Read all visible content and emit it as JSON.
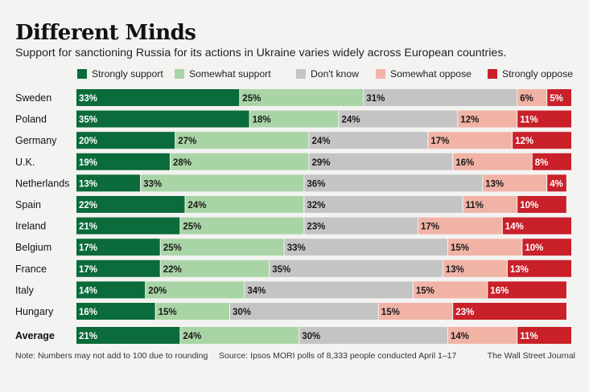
{
  "header": {
    "title": "Different Minds",
    "subtitle": "Support for sanctioning Russia for its actions in Ukraine varies widely across European countries."
  },
  "footer": {
    "note": "Note: Numbers may not add to 100 due to rounding",
    "source": "Source: Ipsos MORI polls of 8,333 people conducted April 1–17",
    "credit": "The Wall Street Journal"
  },
  "colors": {
    "strongly_support": "#0b6b3a",
    "somewhat_support": "#a9d5a6",
    "dont_know": "#c4c4c4",
    "somewhat_oppose": "#f2b3a7",
    "strongly_oppose": "#c9202a"
  },
  "chart_data": {
    "type": "bar",
    "orientation": "horizontal",
    "stacked": true,
    "unit": "%",
    "categories": [
      "Sweden",
      "Poland",
      "Germany",
      "U.K.",
      "Netherlands",
      "Spain",
      "Ireland",
      "Belgium",
      "France",
      "Italy",
      "Hungary",
      "Average"
    ],
    "series": [
      {
        "name": "Strongly support",
        "color": "#0b6b3a",
        "values": [
          33,
          35,
          20,
          19,
          13,
          22,
          21,
          17,
          17,
          14,
          16,
          21
        ]
      },
      {
        "name": "Somewhat support",
        "color": "#a9d5a6",
        "values": [
          25,
          18,
          27,
          28,
          33,
          24,
          25,
          25,
          22,
          20,
          15,
          24
        ]
      },
      {
        "name": "Don't know",
        "color": "#c4c4c4",
        "values": [
          31,
          24,
          24,
          29,
          36,
          32,
          23,
          33,
          35,
          34,
          30,
          30
        ]
      },
      {
        "name": "Somewhat oppose",
        "color": "#f2b3a7",
        "values": [
          6,
          12,
          17,
          16,
          13,
          11,
          17,
          15,
          13,
          15,
          15,
          14
        ]
      },
      {
        "name": "Strongly oppose",
        "color": "#c9202a",
        "values": [
          5,
          11,
          12,
          8,
          4,
          10,
          14,
          10,
          13,
          16,
          23,
          11
        ]
      }
    ],
    "legend_position": "top"
  }
}
